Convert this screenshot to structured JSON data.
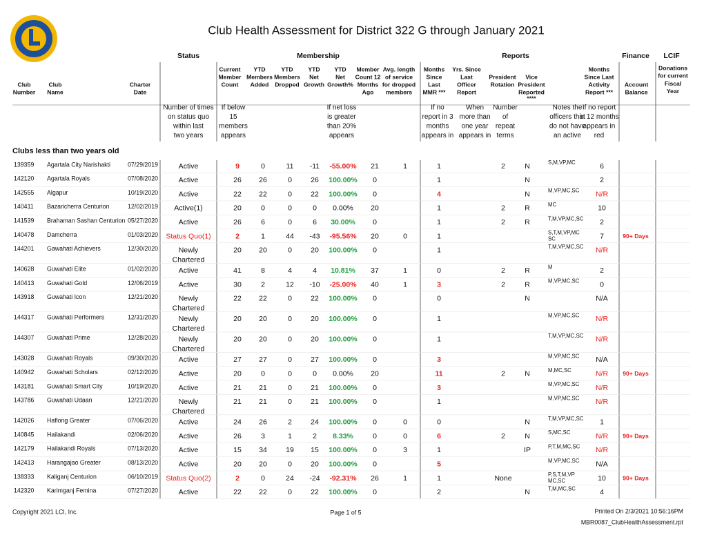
{
  "header": {
    "title": "Club Health Assessment for District 322 G through January 2021"
  },
  "groups": {
    "status": "Status",
    "membership": "Membership",
    "reports": "Reports",
    "finance": "Finance",
    "lcif": "LCIF"
  },
  "columns": {
    "number": [
      "Club",
      "Number"
    ],
    "name": [
      "Club",
      "Name"
    ],
    "date": [
      "Charter",
      "Date"
    ],
    "current": [
      "Current",
      "Member",
      "Count"
    ],
    "added": [
      "YTD",
      "Members",
      "Added"
    ],
    "dropped": [
      "YTD",
      "Members",
      "Dropped"
    ],
    "net": [
      "YTD",
      "Net",
      "Growth"
    ],
    "pct": [
      "YTD",
      "Net",
      "Growth%"
    ],
    "ago": [
      "Member",
      "Count 12",
      "Months",
      "Ago"
    ],
    "avg": [
      "Avg. length",
      "of service",
      "for dropped",
      "members"
    ],
    "mmr": [
      "Months",
      "Since",
      "Last",
      "MMR ***"
    ],
    "officer": [
      "Yrs. Since",
      "Last",
      "Officer",
      "Report"
    ],
    "rotation": [
      "President",
      "Rotation"
    ],
    "vp": [
      "Vice",
      "President",
      "Reported",
      "****"
    ],
    "activity": [
      "Months",
      "Since Last",
      "Activity",
      "Report ***"
    ],
    "balance": [
      "Account",
      "Balance"
    ],
    "lcif": [
      "Donations",
      "for current",
      "Fiscal",
      "Year"
    ]
  },
  "legend": {
    "status": [
      "Number of times",
      "on status quo",
      "within last",
      "two years"
    ],
    "current": [
      "If below",
      "15",
      "members",
      "appears"
    ],
    "pct": [
      "If net loss",
      "is greater",
      "than 20%",
      "appears"
    ],
    "mmr": [
      "If no",
      "report in 3",
      "months",
      "appears in"
    ],
    "officer": [
      "When",
      "more than",
      "one year",
      "appears in"
    ],
    "rotation": [
      "Number",
      "of",
      "repeat",
      "terms"
    ],
    "vp": [
      "Notes the",
      "officers that",
      "do not have",
      "an active"
    ],
    "activity": [
      "If no report",
      "in 12 months",
      "appears in",
      "red"
    ]
  },
  "section": "Clubs less than two years old",
  "colors": {
    "red": "#e8201c",
    "green": "#1b9e3a"
  },
  "rows": [
    {
      "number": "139359",
      "name": "Agartala City Narishakti",
      "date": "07/29/2019",
      "status": [
        "Active"
      ],
      "current": "9",
      "added": "0",
      "dropped": "11",
      "net": "-11",
      "pct": "-55.00%",
      "ago": "21",
      "avg": "1",
      "mmr": "1",
      "rotation": "2",
      "vp": "N",
      "codes": [
        "S,M,VP,MC"
      ],
      "activity": "6",
      "red": [
        "current",
        "pct"
      ]
    },
    {
      "number": "142120",
      "name": "Agartala Royals",
      "date": "07/08/2020",
      "status": [
        "Active"
      ],
      "current": "26",
      "added": "26",
      "dropped": "0",
      "net": "26",
      "pct": "100.00%",
      "ago": "0",
      "mmr": "1",
      "vp": "N",
      "activity": "2",
      "green": [
        "pct"
      ]
    },
    {
      "number": "142555",
      "name": "Algapur",
      "date": "10/19/2020",
      "status": [
        "Active"
      ],
      "current": "22",
      "added": "22",
      "dropped": "0",
      "net": "22",
      "pct": "100.00%",
      "ago": "0",
      "mmr": "4",
      "vp": "N",
      "codes": [
        "M,VP,MC,SC"
      ],
      "activity": "N/R",
      "green": [
        "pct"
      ],
      "red": [
        "mmr",
        "activity"
      ]
    },
    {
      "number": "140411",
      "name": "Bazaricherra Centurion",
      "date": "12/02/2019",
      "status": [
        "Active(1)"
      ],
      "current": "20",
      "added": "0",
      "dropped": "0",
      "net": "0",
      "pct": "0.00%",
      "ago": "20",
      "mmr": "1",
      "rotation": "2",
      "vp": "R",
      "codes": [
        "MC"
      ],
      "activity": "10"
    },
    {
      "number": "141539",
      "name": "Brahaman Sashan Centurion",
      "date": "05/27/2020",
      "status": [
        "Active"
      ],
      "current": "26",
      "added": "6",
      "dropped": "0",
      "net": "6",
      "pct": "30.00%",
      "ago": "0",
      "mmr": "1",
      "rotation": "2",
      "vp": "R",
      "codes": [
        "T,M,VP,MC,SC"
      ],
      "activity": "2",
      "green": [
        "pct"
      ]
    },
    {
      "number": "140478",
      "name": "Damcherra",
      "date": "01/03/2020",
      "status": [
        "Status Quo(1)"
      ],
      "current": "2",
      "added": "1",
      "dropped": "44",
      "net": "-43",
      "pct": "-95.56%",
      "ago": "20",
      "avg": "0",
      "mmr": "1",
      "codes": [
        "S,T,M,VP,MC",
        "SC"
      ],
      "activity": "7",
      "balance": "90+ Days",
      "red": [
        "status",
        "current",
        "pct",
        "balance"
      ]
    },
    {
      "number": "144201",
      "name": "Gawahati Achievers",
      "date": "12/30/2020",
      "status": [
        "Newly",
        "Chartered"
      ],
      "current": "20",
      "added": "20",
      "dropped": "0",
      "net": "20",
      "pct": "100.00%",
      "ago": "0",
      "mmr": "1",
      "codes": [
        "T,M,VP,MC,SC"
      ],
      "activity": "N/R",
      "green": [
        "pct"
      ],
      "red": [
        "activity"
      ]
    },
    {
      "number": "140628",
      "name": "Guwahati Elite",
      "date": "01/02/2020",
      "status": [
        "Active"
      ],
      "current": "41",
      "added": "8",
      "dropped": "4",
      "net": "4",
      "pct": "10.81%",
      "ago": "37",
      "avg": "1",
      "mmr": "0",
      "rotation": "2",
      "vp": "R",
      "codes": [
        "M"
      ],
      "activity": "2",
      "green": [
        "pct"
      ]
    },
    {
      "number": "140413",
      "name": "Guwahati Gold",
      "date": "12/06/2019",
      "status": [
        "Active"
      ],
      "current": "30",
      "added": "2",
      "dropped": "12",
      "net": "-10",
      "pct": "-25.00%",
      "ago": "40",
      "avg": "1",
      "mmr": "3",
      "rotation": "2",
      "vp": "R",
      "codes": [
        "M,VP,MC,SC"
      ],
      "activity": "0",
      "red": [
        "pct",
        "mmr"
      ]
    },
    {
      "number": "143918",
      "name": "Guwahati Icon",
      "date": "12/21/2020",
      "status": [
        "Newly",
        "Chartered"
      ],
      "current": "22",
      "added": "22",
      "dropped": "0",
      "net": "22",
      "pct": "100.00%",
      "ago": "0",
      "mmr": "0",
      "vp": "N",
      "activity": "N/A",
      "green": [
        "pct"
      ]
    },
    {
      "number": "144317",
      "name": "Guwahati Performers",
      "date": "12/31/2020",
      "status": [
        "Newly",
        "Chartered"
      ],
      "current": "20",
      "added": "20",
      "dropped": "0",
      "net": "20",
      "pct": "100.00%",
      "ago": "0",
      "mmr": "1",
      "codes": [
        "M,VP,MC,SC"
      ],
      "activity": "N/R",
      "green": [
        "pct"
      ],
      "red": [
        "activity"
      ]
    },
    {
      "number": "144307",
      "name": "Guwahati Prime",
      "date": "12/28/2020",
      "status": [
        "Newly",
        "Chartered"
      ],
      "current": "20",
      "added": "20",
      "dropped": "0",
      "net": "20",
      "pct": "100.00%",
      "ago": "0",
      "mmr": "1",
      "codes": [
        "T,M,VP,MC,SC"
      ],
      "activity": "N/R",
      "green": [
        "pct"
      ],
      "red": [
        "activity"
      ]
    },
    {
      "number": "143028",
      "name": "Guwahati Royals",
      "date": "09/30/2020",
      "status": [
        "Active"
      ],
      "current": "27",
      "added": "27",
      "dropped": "0",
      "net": "27",
      "pct": "100.00%",
      "ago": "0",
      "mmr": "3",
      "codes": [
        "M,VP,MC,SC"
      ],
      "activity": "N/A",
      "green": [
        "pct"
      ],
      "red": [
        "mmr"
      ]
    },
    {
      "number": "140942",
      "name": "Guwahati Scholars",
      "date": "02/12/2020",
      "status": [
        "Active"
      ],
      "current": "20",
      "added": "0",
      "dropped": "0",
      "net": "0",
      "pct": "0.00%",
      "ago": "20",
      "mmr": "11",
      "rotation": "2",
      "vp": "N",
      "codes": [
        "M,MC,SC"
      ],
      "activity": "N/R",
      "balance": "90+ Days",
      "red": [
        "mmr",
        "activity",
        "balance"
      ]
    },
    {
      "number": "143181",
      "name": "Guwahati Smart City",
      "date": "10/19/2020",
      "status": [
        "Active"
      ],
      "current": "21",
      "added": "21",
      "dropped": "0",
      "net": "21",
      "pct": "100.00%",
      "ago": "0",
      "mmr": "3",
      "codes": [
        "M,VP,MC,SC"
      ],
      "activity": "N/R",
      "green": [
        "pct"
      ],
      "red": [
        "mmr",
        "activity"
      ]
    },
    {
      "number": "143786",
      "name": "Guwahati Udaan",
      "date": "12/21/2020",
      "status": [
        "Newly",
        "Chartered"
      ],
      "current": "21",
      "added": "21",
      "dropped": "0",
      "net": "21",
      "pct": "100.00%",
      "ago": "0",
      "mmr": "1",
      "codes": [
        "M,VP,MC,SC"
      ],
      "activity": "N/R",
      "green": [
        "pct"
      ],
      "red": [
        "activity"
      ]
    },
    {
      "number": "142026",
      "name": "Haflong Greater",
      "date": "07/06/2020",
      "status": [
        "Active"
      ],
      "current": "24",
      "added": "26",
      "dropped": "2",
      "net": "24",
      "pct": "100.00%",
      "ago": "0",
      "avg": "0",
      "mmr": "0",
      "vp": "N",
      "codes": [
        "T,M,VP,MC,SC"
      ],
      "activity": "1",
      "green": [
        "pct"
      ]
    },
    {
      "number": "140845",
      "name": "Hailakandi",
      "date": "02/06/2020",
      "status": [
        "Active"
      ],
      "current": "26",
      "added": "3",
      "dropped": "1",
      "net": "2",
      "pct": "8.33%",
      "ago": "0",
      "avg": "0",
      "mmr": "6",
      "rotation": "2",
      "vp": "N",
      "codes": [
        "S,MC,SC"
      ],
      "activity": "N/R",
      "balance": "90+ Days",
      "green": [
        "pct"
      ],
      "red": [
        "mmr",
        "activity",
        "balance"
      ]
    },
    {
      "number": "142179",
      "name": "Hailakandi Royals",
      "date": "07/13/2020",
      "status": [
        "Active"
      ],
      "current": "15",
      "added": "34",
      "dropped": "19",
      "net": "15",
      "pct": "100.00%",
      "ago": "0",
      "avg": "3",
      "mmr": "1",
      "vp": "IP",
      "codes": [
        "P,T,M,MC,SC"
      ],
      "activity": "N/R",
      "green": [
        "pct"
      ],
      "red": [
        "activity"
      ]
    },
    {
      "number": "142413",
      "name": "Harangajao Greater",
      "date": "08/13/2020",
      "status": [
        "Active"
      ],
      "current": "20",
      "added": "20",
      "dropped": "0",
      "net": "20",
      "pct": "100.00%",
      "ago": "0",
      "mmr": "5",
      "codes": [
        "M,VP,MC,SC"
      ],
      "activity": "N/A",
      "green": [
        "pct"
      ],
      "red": [
        "mmr"
      ]
    },
    {
      "number": "138333",
      "name": "Kaliganj Centurion",
      "date": "06/10/2019",
      "status": [
        "Status Quo(2)"
      ],
      "current": "2",
      "added": "0",
      "dropped": "24",
      "net": "-24",
      "pct": "-92.31%",
      "ago": "26",
      "avg": "1",
      "mmr": "1",
      "rotation": "None",
      "codes": [
        "P,S,T,M,VP",
        "MC,SC"
      ],
      "activity": "10",
      "balance": "90+ Days",
      "red": [
        "status",
        "current",
        "pct",
        "balance"
      ]
    },
    {
      "number": "142320",
      "name": "Karimganj Femina",
      "date": "07/27/2020",
      "status": [
        "Active"
      ],
      "current": "22",
      "added": "22",
      "dropped": "0",
      "net": "22",
      "pct": "100.00%",
      "ago": "0",
      "mmr": "2",
      "vp": "N",
      "codes": [
        "T,M,MC,SC"
      ],
      "activity": "4",
      "green": [
        "pct"
      ]
    }
  ],
  "footer": {
    "copyright": "Copyright 2021 LCI, Inc.",
    "page": "Page 1 of 5",
    "printed": "Printed On  2/3/2021  10:56:16PM",
    "report": "MBR0087_ClubHealthAssessment.rpt"
  }
}
